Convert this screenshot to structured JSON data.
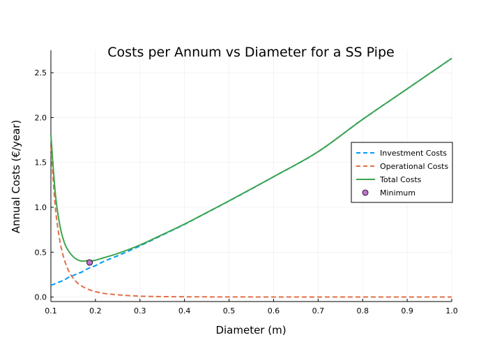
{
  "chart_data": {
    "type": "line",
    "title": "Costs per Annum vs Diameter for a SS Pipe",
    "xlabel": "Diameter (m)",
    "ylabel": "Annual Costs (€/year)",
    "xlim": [
      0.1,
      1.0
    ],
    "ylim": [
      -0.05,
      2.75
    ],
    "x_ticks": [
      0.1,
      0.2,
      0.3,
      0.4,
      0.5,
      0.6,
      0.7,
      0.8,
      0.9,
      1.0
    ],
    "x_tick_labels": [
      "0.1",
      "0.2",
      "0.3",
      "0.4",
      "0.5",
      "0.6",
      "0.7",
      "0.8",
      "0.9",
      "1.0"
    ],
    "y_ticks": [
      0.0,
      0.5,
      1.0,
      1.5,
      2.0,
      2.5
    ],
    "y_tick_labels": [
      "0.0",
      "0.5",
      "1.0",
      "1.5",
      "2.0",
      "2.5"
    ],
    "grid": true,
    "legend_position": "right",
    "x": [
      0.1,
      0.11,
      0.12,
      0.13,
      0.14,
      0.15,
      0.16,
      0.17,
      0.18,
      0.19,
      0.2,
      0.22,
      0.25,
      0.3,
      0.35,
      0.4,
      0.45,
      0.5,
      0.6,
      0.7,
      0.8,
      0.9,
      1.0
    ],
    "series": [
      {
        "name": "Investment Costs",
        "color": "#009af9",
        "dash": "dash",
        "values": [
          0.13,
          0.15,
          0.17,
          0.19,
          0.22,
          0.24,
          0.26,
          0.28,
          0.31,
          0.33,
          0.35,
          0.4,
          0.46,
          0.57,
          0.69,
          0.81,
          0.94,
          1.07,
          1.34,
          1.62,
          1.98,
          2.32,
          2.66
        ]
      },
      {
        "name": "Operational Costs",
        "color": "#e26f46",
        "dash": "dash",
        "values": [
          1.68,
          1.0,
          0.63,
          0.42,
          0.29,
          0.21,
          0.155,
          0.12,
          0.095,
          0.075,
          0.06,
          0.04,
          0.025,
          0.01,
          0.005,
          0.003,
          0.002,
          0.0015,
          0.0008,
          0.0004,
          0.0002,
          0.0001,
          0.0001
        ]
      },
      {
        "name": "Total Costs",
        "color": "#3da44d",
        "dash": "solid",
        "values": [
          1.81,
          1.15,
          0.8,
          0.61,
          0.51,
          0.45,
          0.415,
          0.4,
          0.405,
          0.405,
          0.41,
          0.44,
          0.485,
          0.58,
          0.695,
          0.813,
          0.942,
          1.072,
          1.341,
          1.62,
          1.98,
          2.32,
          2.66
        ]
      }
    ],
    "minimum": {
      "name": "Minimum",
      "x": 0.187,
      "y": 0.385,
      "color": "#c271d2"
    }
  }
}
